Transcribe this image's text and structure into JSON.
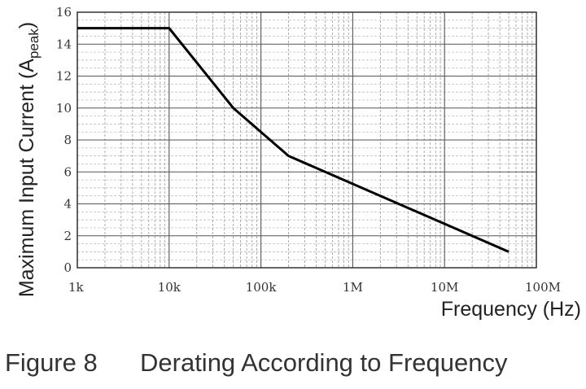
{
  "chart_data": {
    "type": "line",
    "xlabel": "Frequency (Hz)",
    "ylabel": "Maximum Input Current (A",
    "ylabel_sub": "peak",
    "ylabel_close": ")",
    "x_scale": "log",
    "xlim": [
      1000,
      100000000
    ],
    "ylim": [
      0,
      16
    ],
    "x_ticks": [
      {
        "value": 1000,
        "label": "1k"
      },
      {
        "value": 10000,
        "label": "10k"
      },
      {
        "value": 100000,
        "label": "100k"
      },
      {
        "value": 1000000,
        "label": "1M"
      },
      {
        "value": 10000000,
        "label": "10M"
      },
      {
        "value": 100000000,
        "label": "100M"
      }
    ],
    "y_ticks": [
      0,
      2,
      4,
      6,
      8,
      10,
      12,
      14,
      16
    ],
    "grid": true,
    "series": [
      {
        "x": [
          1000,
          10000,
          50000,
          200000,
          50000000
        ],
        "y": [
          15,
          15,
          10,
          7,
          1
        ],
        "color": "#000000"
      }
    ]
  },
  "caption": {
    "number": "Figure 8",
    "title": "Derating According to Frequency"
  }
}
